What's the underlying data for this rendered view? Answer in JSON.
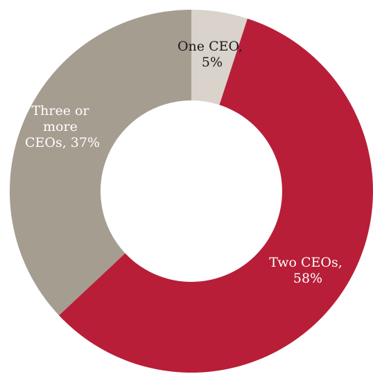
{
  "chart_data": {
    "type": "pie",
    "variant": "donut",
    "start_angle_deg": 0,
    "direction": "clockwise",
    "title": "",
    "legend": "none",
    "slices": [
      {
        "name": "One CEO",
        "value": 5,
        "color": "#d9d3cb",
        "label_color": "#1a1a1a",
        "label_lines": [
          "One CEO,",
          "5%"
        ]
      },
      {
        "name": "Two CEOs",
        "value": 58,
        "color": "#b81e38",
        "label_color": "#ffffff",
        "label_lines": [
          "Two CEOs,",
          "58%"
        ]
      },
      {
        "name": "Three or more CEOs",
        "value": 37,
        "color": "#a69d91",
        "label_color": "#ffffff",
        "label_lines": [
          "Three or",
          "more",
          "CEOs, 37%"
        ]
      }
    ]
  }
}
